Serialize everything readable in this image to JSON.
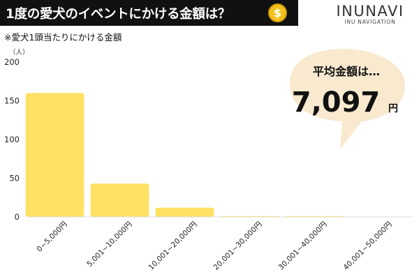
{
  "header": {
    "title": "1度の愛犬のイベントにかける金額は？",
    "coin_symbol": "$",
    "brand_name": "INUNAVI",
    "brand_tagline": "INU NAVIGATION"
  },
  "subtitle": "※愛犬1頭当たりにかける金額",
  "callout": {
    "label": "平均金額は…",
    "value": "7,097",
    "unit": "円",
    "color": "#f8e9cf"
  },
  "chart_data": {
    "type": "bar",
    "categories": [
      "0~5,000円",
      "5,001~10,000円",
      "10,001~20,000円",
      "20,001~30,000円",
      "30,001~40,000円",
      "40,001~50,000円"
    ],
    "values": [
      160,
      43,
      12,
      1,
      1,
      0
    ],
    "y_unit_label": "（人）",
    "ylim": [
      0,
      200
    ],
    "yticks": [
      0,
      50,
      100,
      150,
      200
    ],
    "bar_color": "#ffe164",
    "grid": false,
    "legend": "none"
  }
}
